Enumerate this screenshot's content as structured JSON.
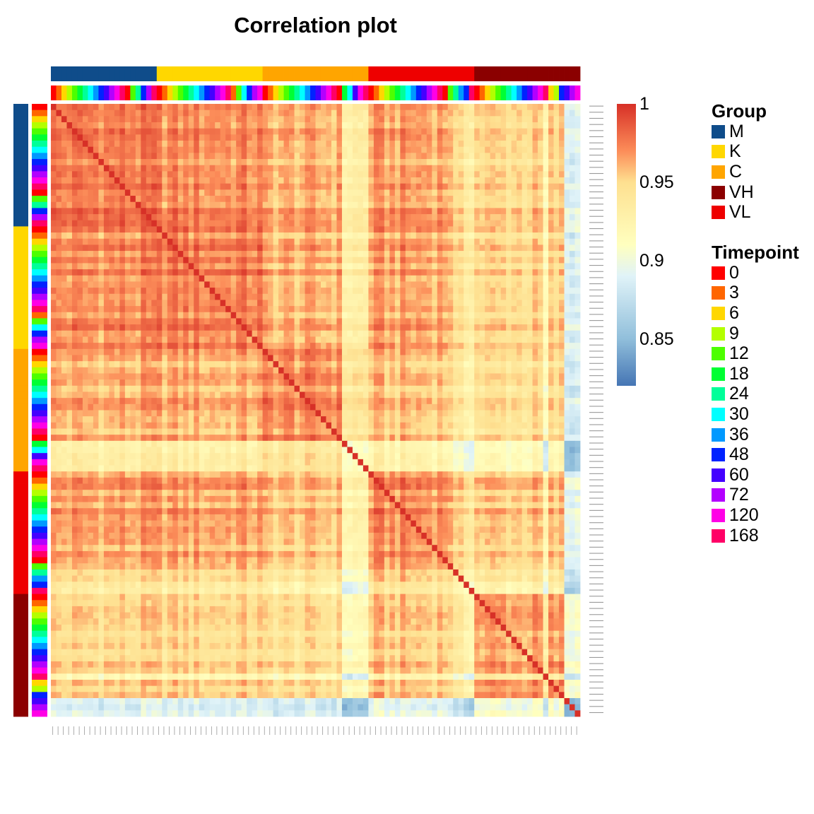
{
  "chart_data": {
    "type": "heatmap",
    "title": "Correlation plot",
    "groups": [
      {
        "name": "M",
        "color": "#0F4C8A",
        "samples": 20
      },
      {
        "name": "K",
        "color": "#FFD700",
        "samples": 20
      },
      {
        "name": "C",
        "color": "#FFA500",
        "samples": 20
      },
      {
        "name": "VL",
        "color": "#EE0000",
        "samples": 20
      },
      {
        "name": "VH",
        "color": "#8B0000",
        "samples": 20
      }
    ],
    "group_legend_order": [
      "M",
      "K",
      "C",
      "VH",
      "VL"
    ],
    "timepoints": [
      {
        "label": "0",
        "color": "#FF0000"
      },
      {
        "label": "3",
        "color": "#FF6600"
      },
      {
        "label": "6",
        "color": "#FFD700"
      },
      {
        "label": "9",
        "color": "#B3FF00"
      },
      {
        "label": "12",
        "color": "#4DFF00"
      },
      {
        "label": "18",
        "color": "#00FF33"
      },
      {
        "label": "24",
        "color": "#00FF99"
      },
      {
        "label": "30",
        "color": "#00FFFF"
      },
      {
        "label": "36",
        "color": "#0099FF"
      },
      {
        "label": "48",
        "color": "#0022FF"
      },
      {
        "label": "60",
        "color": "#4400FF"
      },
      {
        "label": "72",
        "color": "#B300FF"
      },
      {
        "label": "120",
        "color": "#FF00E6"
      },
      {
        "label": "168",
        "color": "#FF0066"
      }
    ],
    "sample_timepoints": {
      "M": [
        "0",
        "3",
        "6",
        "9",
        "12",
        "18",
        "24",
        "30",
        "36",
        "48",
        "60",
        "72",
        "120",
        "168",
        "0",
        "12",
        "24",
        "48",
        "72",
        "168"
      ],
      "K": [
        "0",
        "3",
        "6",
        "9",
        "12",
        "18",
        "24",
        "30",
        "36",
        "48",
        "60",
        "72",
        "120",
        "168",
        "3",
        "12",
        "30",
        "48",
        "72",
        "120"
      ],
      "C": [
        "0",
        "3",
        "6",
        "9",
        "12",
        "18",
        "24",
        "30",
        "36",
        "48",
        "60",
        "72",
        "120",
        "168",
        "0",
        "18",
        "30",
        "60",
        "120",
        "168"
      ],
      "VL": [
        "0",
        "3",
        "6",
        "9",
        "12",
        "18",
        "24",
        "30",
        "36",
        "48",
        "60",
        "72",
        "120",
        "168",
        "0",
        "12",
        "24",
        "36",
        "48",
        "168"
      ],
      "VH": [
        "0",
        "3",
        "6",
        "9",
        "12",
        "18",
        "24",
        "30",
        "36",
        "48",
        "60",
        "72",
        "120",
        "168",
        "6",
        "9",
        "48",
        "60",
        "72",
        "120"
      ]
    },
    "block_correlation": {
      "rows": [
        "M",
        "K",
        "C",
        "VL",
        "VH"
      ],
      "cols": [
        "M",
        "K",
        "C",
        "VL",
        "VH"
      ],
      "values": [
        [
          0.975,
          0.97,
          0.96,
          0.965,
          0.95
        ],
        [
          0.97,
          0.975,
          0.96,
          0.965,
          0.95
        ],
        [
          0.96,
          0.96,
          0.97,
          0.955,
          0.945
        ],
        [
          0.965,
          0.965,
          0.955,
          0.97,
          0.955
        ],
        [
          0.95,
          0.95,
          0.945,
          0.955,
          0.965
        ]
      ]
    },
    "color_scale": {
      "min": 0.82,
      "max": 1.0,
      "stops": [
        {
          "value": 0.82,
          "color": "#4575B4"
        },
        {
          "value": 0.85,
          "color": "#91BFDB"
        },
        {
          "value": 0.89,
          "color": "#E0F3F8"
        },
        {
          "value": 0.91,
          "color": "#FFFFBF"
        },
        {
          "value": 0.95,
          "color": "#FEE090"
        },
        {
          "value": 0.97,
          "color": "#FC8D59"
        },
        {
          "value": 1.0,
          "color": "#D73027"
        }
      ],
      "ticks": [
        "1",
        "0.95",
        "0.9",
        "0.85"
      ]
    },
    "legend": {
      "group_title": "Group",
      "timepoint_title": "Timepoint"
    }
  }
}
